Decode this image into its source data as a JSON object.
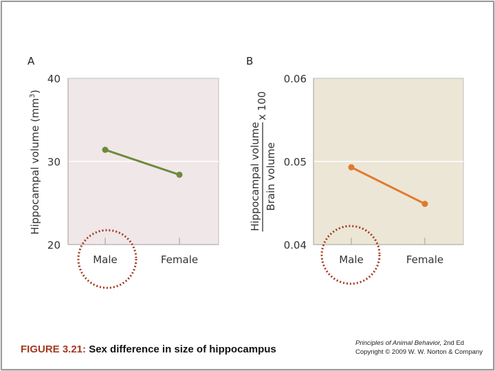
{
  "chart_data": [
    {
      "panel": "A",
      "type": "line",
      "categories": [
        "Male",
        "Female"
      ],
      "values": [
        31.4,
        28.4
      ],
      "ylim": [
        20,
        40
      ],
      "yticks": [
        "20",
        "30",
        "40"
      ],
      "ylabel_prefix": "Hippocampal volume (mm",
      "ylabel_exp": "3",
      "ylabel_suffix": ")",
      "colors": {
        "background": "#f0e7e8",
        "line": "#6e8a3a",
        "grid": "#ffffff"
      }
    },
    {
      "panel": "B",
      "type": "line",
      "categories": [
        "Male",
        "Female"
      ],
      "values": [
        0.0493,
        0.0449
      ],
      "ylim": [
        0.04,
        0.06
      ],
      "yticks": [
        "0.04",
        "0.05",
        "0.06"
      ],
      "ylabel_numerator": "Hippocampal volume",
      "ylabel_denominator": "Brain volume",
      "ylabel_multiplier": "x 100",
      "colors": {
        "background": "#ece6d6",
        "line": "#e07a2e",
        "grid": "#ffffff"
      }
    }
  ],
  "annotation_color": "#a3381f",
  "caption": {
    "figure_number": "FIGURE 3.21:",
    "text": "Sex difference in size of hippocampus"
  },
  "credit": {
    "book_title": "Principles of Animal Behavior,",
    "edition": "2nd Ed",
    "copyright": "Copyright © 2009 W. W. Norton & Company"
  }
}
